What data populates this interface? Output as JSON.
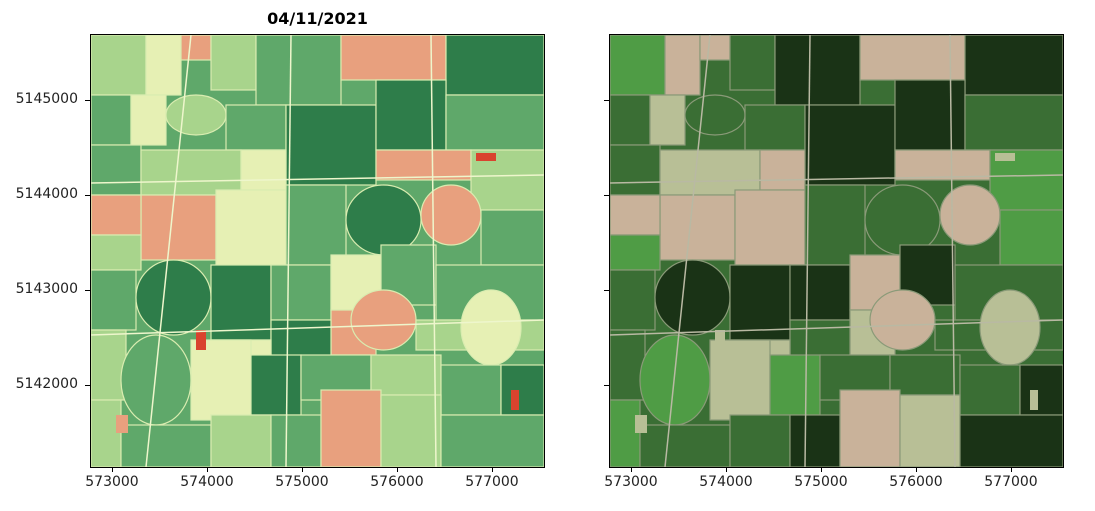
{
  "figure": {
    "title": "04/11/2021",
    "axes": [
      {
        "name": "left",
        "xticks": [
          "573000",
          "574000",
          "575000",
          "576000",
          "577000"
        ],
        "yticks": [
          "5145000",
          "5144000",
          "5143000",
          "5142000"
        ],
        "palette": "green-yellow-salmon"
      },
      {
        "name": "right",
        "xticks": [
          "573000",
          "574000",
          "575000",
          "576000",
          "577000"
        ],
        "yticks": [],
        "palette": "true-color"
      }
    ]
  },
  "colors": {
    "deep_green": "#2e7d4a",
    "mid_green": "#5fa86a",
    "light_green": "#a8d48c",
    "pale_yellow": "#e6f0b4",
    "salmon": "#e8a07e",
    "red_accent": "#d9432e",
    "rgb_dark": "#1a3316",
    "rgb_green": "#3a6e34",
    "rgb_bright": "#4f9c45",
    "rgb_tan": "#c9b29a",
    "rgb_pale": "#b8bf96"
  }
}
